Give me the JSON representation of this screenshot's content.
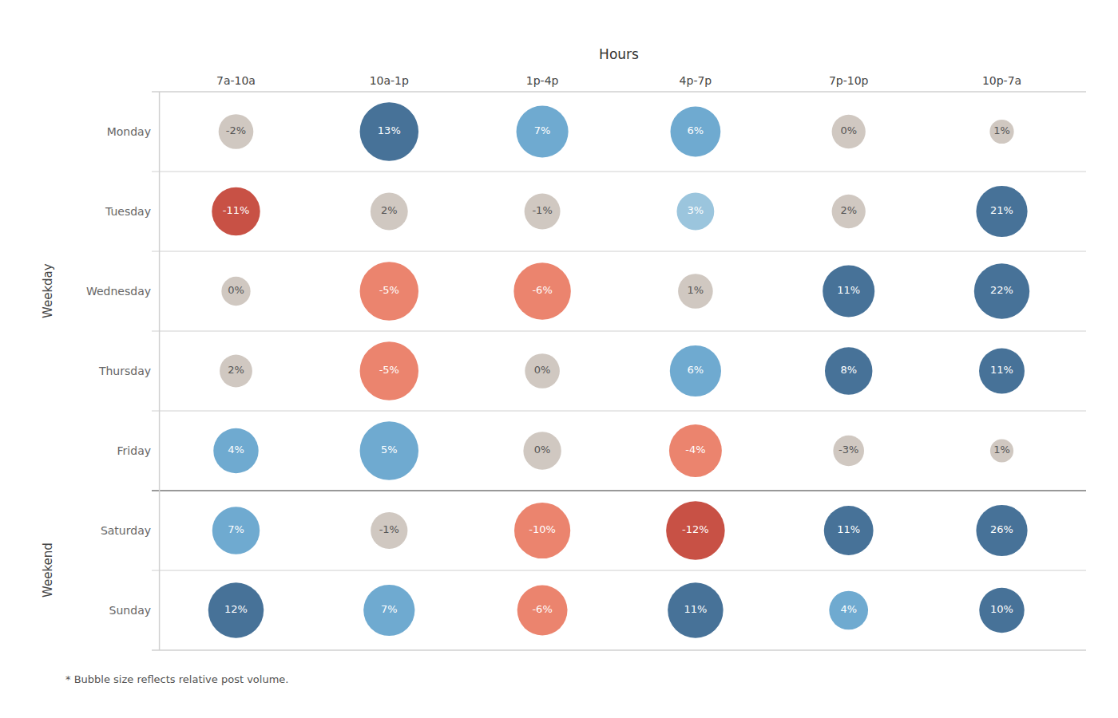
{
  "chart_data": {
    "type": "bubble_grid",
    "xlabel": "Hours",
    "footnote": "* Bubble size reflects relative post volume.",
    "categories": [
      "7a-10a",
      "10a-1p",
      "1p-4p",
      "4p-7p",
      "7p-10p",
      "10p-7a"
    ],
    "rows": [
      "Monday",
      "Tuesday",
      "Wednesday",
      "Thursday",
      "Friday",
      "Saturday",
      "Sunday"
    ],
    "groups": [
      {
        "name": "Weekday",
        "rows": [
          "Monday",
          "Tuesday",
          "Wednesday",
          "Thursday",
          "Friday"
        ]
      },
      {
        "name": "Weekend",
        "rows": [
          "Saturday",
          "Sunday"
        ]
      }
    ],
    "values": [
      [
        -2,
        13,
        7,
        6,
        0,
        1
      ],
      [
        -11,
        2,
        -1,
        3,
        2,
        21
      ],
      [
        0,
        -5,
        -6,
        1,
        11,
        22
      ],
      [
        2,
        -5,
        0,
        6,
        8,
        11
      ],
      [
        4,
        5,
        0,
        -4,
        -3,
        1
      ],
      [
        7,
        -1,
        -10,
        -12,
        11,
        26
      ],
      [
        12,
        7,
        -6,
        11,
        4,
        10
      ]
    ],
    "value_labels": [
      [
        "-2%",
        "13%",
        "7%",
        "6%",
        "0%",
        "1%"
      ],
      [
        "-11%",
        "2%",
        "-1%",
        "3%",
        "2%",
        "21%"
      ],
      [
        "0%",
        "-5%",
        "-6%",
        "1%",
        "11%",
        "22%"
      ],
      [
        "2%",
        "-5%",
        "0%",
        "6%",
        "8%",
        "11%"
      ],
      [
        "4%",
        "5%",
        "0%",
        "-4%",
        "-3%",
        "1%"
      ],
      [
        "7%",
        "-1%",
        "-10%",
        "-12%",
        "11%",
        "26%"
      ],
      [
        "12%",
        "7%",
        "-6%",
        "11%",
        "4%",
        "10%"
      ]
    ],
    "bubble_sizes": [
      [
        300,
        900,
        700,
        650,
        280,
        130
      ],
      [
        600,
        350,
        320,
        350,
        280,
        680
      ],
      [
        200,
        900,
        850,
        300,
        700,
        800
      ],
      [
        260,
        900,
        300,
        680,
        580,
        530
      ],
      [
        520,
        900,
        360,
        720,
        230,
        120
      ],
      [
        580,
        340,
        820,
        900,
        630,
        680
      ],
      [
        800,
        680,
        650,
        800,
        380,
        520
      ]
    ],
    "colors": [
      [
        "#C9C0B8",
        "#2E5F8A",
        "#5B9EC9",
        "#5B9EC9",
        "#C9C0B8",
        "#C9C0B8"
      ],
      [
        "#C0392B",
        "#C9C0B8",
        "#C9C0B8",
        "#8DBDD8",
        "#C9C0B8",
        "#2E5F8A"
      ],
      [
        "#C9C0B8",
        "#E8735A",
        "#E8735A",
        "#C9C0B8",
        "#2E5F8A",
        "#2E5F8A"
      ],
      [
        "#C9C0B8",
        "#E8735A",
        "#C9C0B8",
        "#5B9EC9",
        "#2E5F8A",
        "#2E5F8A"
      ],
      [
        "#5B9EC9",
        "#5B9EC9",
        "#C9C0B8",
        "#E8735A",
        "#C9C0B8",
        "#C9C0B8"
      ],
      [
        "#5B9EC9",
        "#C9C0B8",
        "#E8735A",
        "#C0392B",
        "#2E5F8A",
        "#2E5F8A"
      ],
      [
        "#2E5F8A",
        "#5B9EC9",
        "#E8735A",
        "#2E5F8A",
        "#5B9EC9",
        "#2E5F8A"
      ]
    ],
    "grid": true,
    "data_labels": true
  }
}
